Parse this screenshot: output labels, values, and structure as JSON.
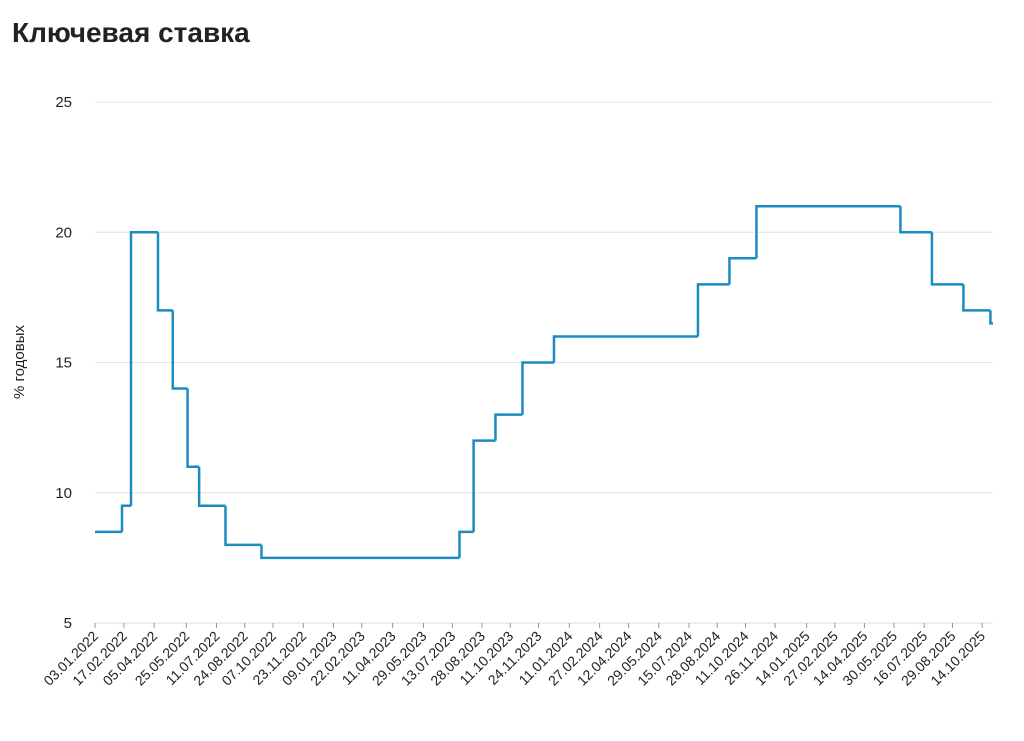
{
  "chart_data": {
    "type": "line",
    "step": "post",
    "title": "Ключевая ставка",
    "y_label": "% годовых",
    "color": "#1b8bc0",
    "grid": true,
    "x": [
      "03.01.2022",
      "14.02.2022",
      "28.02.2022",
      "11.04.2022",
      "04.05.2022",
      "27.05.2022",
      "14.06.2022",
      "25.07.2022",
      "19.09.2022",
      "24.07.2023",
      "15.08.2023",
      "18.09.2023",
      "30.10.2023",
      "18.12.2023",
      "29.07.2024",
      "16.09.2024",
      "28.10.2024",
      "09.06.2025",
      "28.07.2025",
      "15.09.2025",
      "27.10.2025"
    ],
    "values": [
      8.5,
      9.5,
      20,
      17,
      14,
      11,
      9.5,
      8,
      7.5,
      8.5,
      12,
      13,
      15,
      16,
      18,
      19,
      21,
      20,
      18,
      17,
      16.5
    ],
    "xlim": [
      "03.01.2022",
      "31.10.2025"
    ],
    "xticks": [
      "03.01.2022",
      "17.02.2022",
      "05.04.2022",
      "25.05.2022",
      "11.07.2022",
      "24.08.2022",
      "07.10.2022",
      "23.11.2022",
      "09.01.2023",
      "22.02.2023",
      "11.04.2023",
      "29.05.2023",
      "13.07.2023",
      "28.08.2023",
      "11.10.2023",
      "24.11.2023",
      "11.01.2024",
      "27.02.2024",
      "12.04.2024",
      "29.05.2024",
      "15.07.2024",
      "28.08.2024",
      "11.10.2024",
      "26.11.2024",
      "14.01.2025",
      "27.02.2025",
      "14.04.2025",
      "30.05.2025",
      "16.07.2025",
      "29.08.2025",
      "14.10.2025"
    ],
    "ylim": [
      5,
      25
    ],
    "yticks": [
      5,
      10,
      15,
      20,
      25
    ]
  }
}
